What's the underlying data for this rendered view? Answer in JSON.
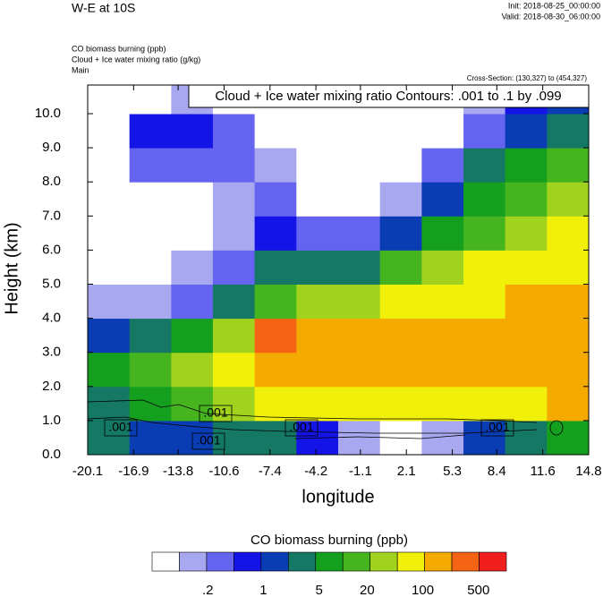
{
  "header": {
    "title": "W-E at 10S",
    "init": "Init: 2018-08-25_00:00:00",
    "valid": "Valid: 2018-08-30_06:00:00",
    "fields": [
      "CO biomass burning   (ppb)",
      "Cloud + Ice water mixing ratio   (g/kg)",
      "Main"
    ],
    "cross_section": "Cross-Section: (130,327) to (454,327)"
  },
  "chart_data": {
    "type": "heatmap",
    "contour_title": "Cloud + Ice water mixing ratio Contours: .001 to .1 by .099",
    "contour_labels": [
      ".001",
      ".001",
      ".001",
      ".001",
      ".001"
    ],
    "x_label": "longitude",
    "y_label": "Height (km)",
    "xlim": [
      -20.1,
      14.8
    ],
    "ylim": [
      0,
      10.84
    ],
    "xticks": [
      -20.1,
      -16.9,
      -13.8,
      -10.6,
      -7.4,
      -4.2,
      -1.1,
      2.1,
      5.3,
      8.4,
      11.6,
      14.8
    ],
    "yticks": [
      {
        "value": 0,
        "label": "0.0"
      },
      {
        "value": 1,
        "label": "1.0"
      },
      {
        "value": 2,
        "label": "2.0"
      },
      {
        "value": 3,
        "label": "3.0"
      },
      {
        "value": 4,
        "label": "4.0"
      },
      {
        "value": 5,
        "label": "5.0"
      },
      {
        "value": 6,
        "label": "6.0"
      },
      {
        "value": 7,
        "label": "7.0"
      },
      {
        "value": 8,
        "label": "8.0"
      },
      {
        "value": 9,
        "label": "9.0"
      },
      {
        "value": 10,
        "label": "10.0"
      }
    ],
    "x_bins": [
      -20.1,
      -17.19,
      -14.28,
      -11.38,
      -8.47,
      -5.56,
      -2.65,
      0.26,
      3.17,
      6.08,
      8.98,
      11.89,
      14.8
    ],
    "y_bins": [
      0,
      1,
      2,
      3,
      4,
      5,
      6,
      7,
      8,
      9,
      10,
      10.84
    ],
    "values": [
      [
        2.8,
        1.3,
        1.3,
        2.8,
        2.8,
        0.6,
        0.13,
        0.06,
        0.13,
        1.3,
        2.8,
        6
      ],
      [
        2.8,
        6,
        13,
        28,
        62,
        62,
        62,
        62,
        62,
        62,
        62,
        135
      ],
      [
        6,
        13,
        28,
        62,
        135,
        135,
        135,
        135,
        135,
        135,
        135,
        135
      ],
      [
        1.3,
        2.8,
        6,
        28,
        290,
        135,
        135,
        135,
        135,
        135,
        135,
        135
      ],
      [
        0.13,
        0.13,
        0.28,
        2.8,
        13,
        28,
        28,
        62,
        62,
        62,
        135,
        135
      ],
      [
        0.06,
        0.06,
        0.13,
        0.28,
        2.8,
        2.8,
        2.8,
        13,
        28,
        62,
        62,
        62
      ],
      [
        0.06,
        0.06,
        0.06,
        0.13,
        0.6,
        0.28,
        0.28,
        1.3,
        6,
        13,
        28,
        62
      ],
      [
        0.06,
        0.06,
        0.06,
        0.13,
        0.28,
        0.06,
        0.06,
        0.13,
        1.3,
        6,
        13,
        28
      ],
      [
        0.06,
        0.28,
        0.28,
        0.28,
        0.13,
        0.06,
        0.06,
        0.06,
        0.28,
        2.8,
        6,
        13
      ],
      [
        0.06,
        0.6,
        0.6,
        0.28,
        0.06,
        0.06,
        0.06,
        0.06,
        0.06,
        0.28,
        1.3,
        2.8
      ],
      [
        0.06,
        0.06,
        0.13,
        0.06,
        0.06,
        0.06,
        0.06,
        0.06,
        0.06,
        0.13,
        0.6,
        1.3
      ]
    ],
    "colorscale": {
      "title": "CO biomass burning  (ppb)",
      "log": true,
      "range": [
        0.04,
        1120
      ],
      "colors": [
        "#ffffff",
        "#a8a8f0",
        "#6464f0",
        "#1414e6",
        "#0a3cb4",
        "#147864",
        "#14a01e",
        "#46b41e",
        "#a0d21e",
        "#f0f00a",
        "#f5aa00",
        "#f56414",
        "#f01e1e"
      ],
      "ticks": [
        {
          "value": 0.2,
          "label": ".2"
        },
        1,
        5,
        20,
        100,
        500
      ]
    }
  }
}
